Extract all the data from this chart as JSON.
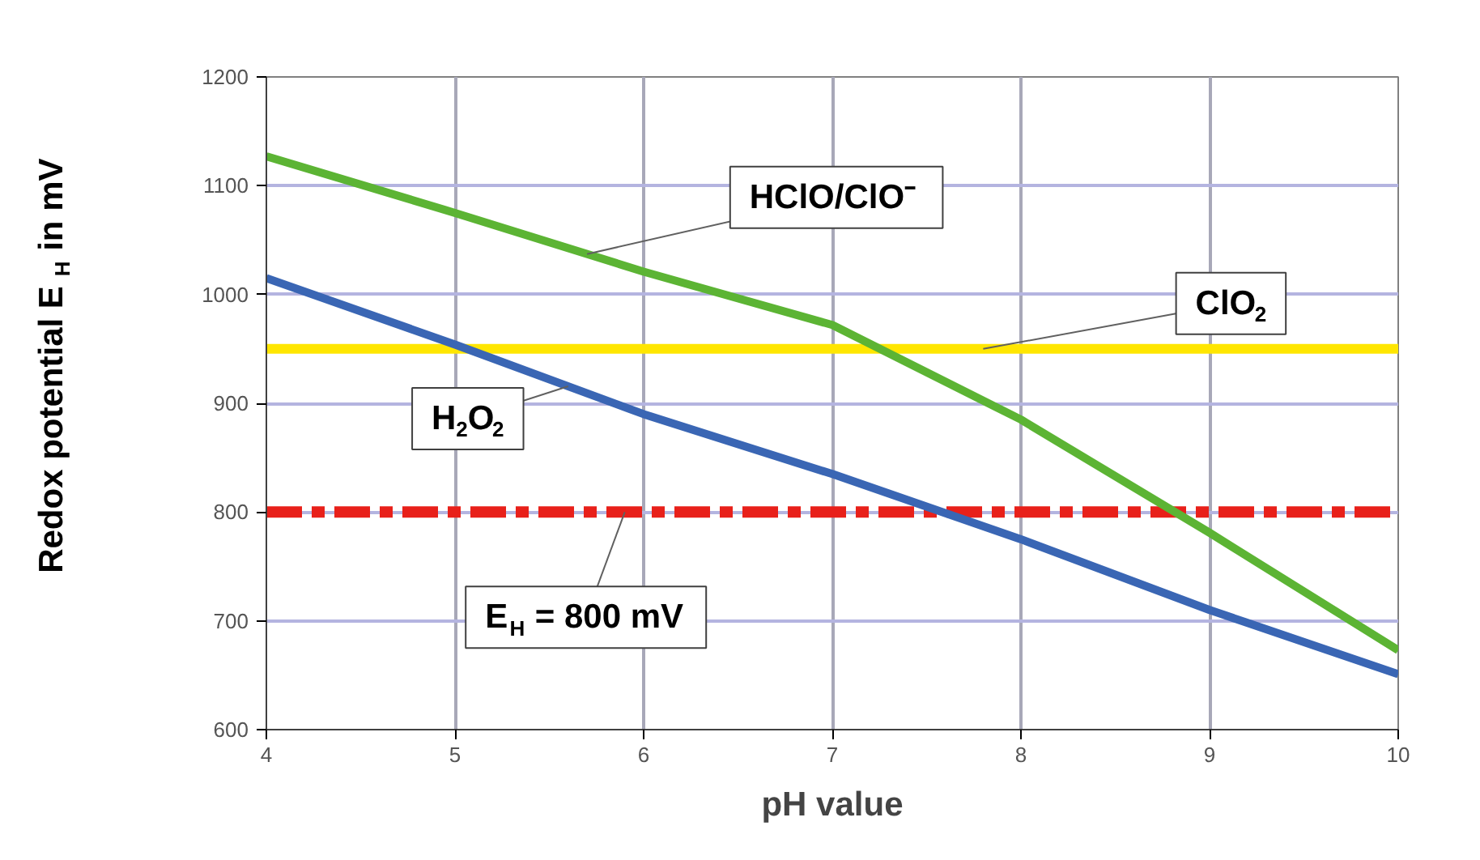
{
  "chart_data": {
    "type": "line",
    "xlabel": "pH value",
    "ylabel": "Redox potential E$_{H}$ in mV",
    "x": [
      4,
      5,
      6,
      7,
      8,
      9,
      10
    ],
    "series": [
      {
        "name": "HClO/ClO⁻",
        "color": "#5cb434",
        "values": [
          1127,
          1075,
          1021,
          972,
          885,
          781,
          673
        ]
      },
      {
        "name": "H$_{2}$O$_{2}$",
        "color": "#3a66b4",
        "values": [
          1015,
          954,
          890,
          835,
          775,
          710,
          651
        ]
      }
    ],
    "ref_lines": [
      {
        "axis": "y",
        "value": 950,
        "label": "ClO$_{2}$",
        "color": "#ffe600",
        "line_style": "solid"
      },
      {
        "axis": "y",
        "value": 800,
        "label": "E$_{H}$ = 800 mV",
        "color": "#e8201a",
        "line_style": "dashdot"
      }
    ],
    "xlim": [
      4,
      10
    ],
    "ylim": [
      600,
      1200
    ],
    "xticks": [
      4,
      5,
      6,
      7,
      8,
      9,
      10
    ],
    "yticks": [
      600,
      700,
      800,
      900,
      1000,
      1100,
      1200
    ],
    "grid": true,
    "marker": "none",
    "line_style": "solid"
  }
}
